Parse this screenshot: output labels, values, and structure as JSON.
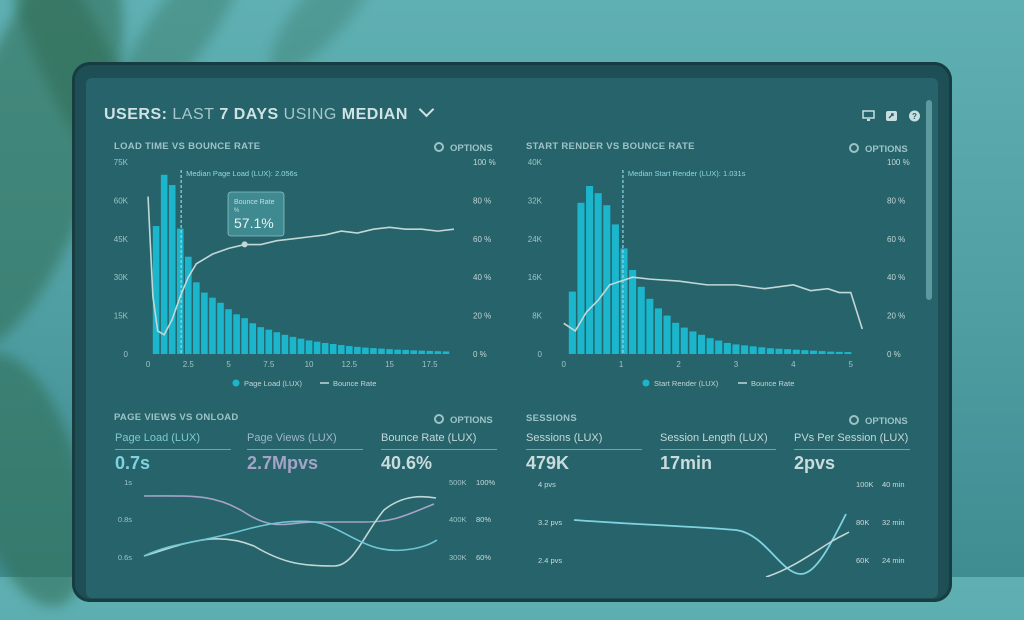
{
  "header": {
    "title_users": "USERS:",
    "title_last": "LAST",
    "title_days": "7 DAYS",
    "title_using": "USING",
    "title_median": "MEDIAN"
  },
  "top_icons": [
    "monitor-icon",
    "share-icon",
    "help-icon"
  ],
  "panels": {
    "load_time": {
      "title": "LOAD TIME VS BOUNCE RATE",
      "options": "OPTIONS",
      "median_label": "Median Page Load (LUX): 2.056s",
      "tooltip_label": "Bounce Rate",
      "tooltip_sub": "%",
      "tooltip_value": "57.1%",
      "legend": [
        "Page Load (LUX)",
        "Bounce Rate"
      ]
    },
    "start_render": {
      "title": "START RENDER VS BOUNCE RATE",
      "options": "OPTIONS",
      "median_label": "Median Start Render (LUX): 1.031s",
      "legend": [
        "Start Render (LUX)",
        "Bounce Rate"
      ]
    },
    "page_views": {
      "title": "PAGE VIEWS VS ONLOAD",
      "options": "OPTIONS",
      "metrics": [
        {
          "label": "Page Load (LUX)",
          "value": "0.7s",
          "color": "#7fd3e0"
        },
        {
          "label": "Page Views (LUX)",
          "value": "2.7Mpvs",
          "color": "#a5a3c8"
        },
        {
          "label": "Bounce Rate (LUX)",
          "value": "40.6%",
          "color": "#c9dcdd"
        }
      ]
    },
    "sessions": {
      "title": "SESSIONS",
      "options": "OPTIONS",
      "metrics": [
        {
          "label": "Sessions (LUX)",
          "value": "479K",
          "color": "#c9dcdd"
        },
        {
          "label": "Session Length (LUX)",
          "value": "17min",
          "color": "#c9dcdd"
        },
        {
          "label": "PVs Per Session (LUX)",
          "value": "2pvs",
          "color": "#c9dcdd"
        }
      ]
    }
  },
  "chart_data": [
    {
      "type": "bar",
      "title": "LOAD TIME VS BOUNCE RATE",
      "x": [
        0.5,
        1,
        1.5,
        2,
        2.5,
        3,
        3.5,
        4,
        4.5,
        5,
        5.5,
        6,
        6.5,
        7,
        7.5,
        8,
        8.5,
        9,
        9.5,
        10,
        10.5,
        11,
        11.5,
        12,
        12.5,
        13,
        13.5,
        14,
        14.5,
        15,
        15.5,
        16,
        16.5,
        17,
        17.5,
        18,
        18.5
      ],
      "series": [
        {
          "name": "Page Load (LUX)",
          "axis": "left",
          "values": [
            50000,
            70000,
            66000,
            49000,
            38000,
            28000,
            24000,
            22000,
            20000,
            17500,
            15500,
            14000,
            12000,
            10500,
            9500,
            8500,
            7500,
            6700,
            6000,
            5300,
            4800,
            4300,
            3900,
            3500,
            3100,
            2800,
            2500,
            2300,
            2100,
            1900,
            1700,
            1600,
            1400,
            1300,
            1200,
            1100,
            1000
          ]
        },
        {
          "name": "Bounce Rate",
          "axis": "right",
          "type": "line",
          "x": [
            0,
            0.3,
            0.6,
            1,
            1.5,
            2,
            2.5,
            3,
            4,
            5,
            6,
            7,
            8,
            9,
            10,
            11,
            12,
            13,
            14,
            15,
            16,
            17,
            18,
            19
          ],
          "values": [
            82,
            30,
            12,
            10,
            18,
            30,
            40,
            47,
            52,
            55,
            57,
            57,
            59,
            60,
            61,
            62,
            64,
            63,
            65,
            66,
            65,
            65,
            64,
            65
          ]
        }
      ],
      "xticks": [
        "0",
        "2.5",
        "5",
        "7.5",
        "10",
        "12.5",
        "15",
        "17.5"
      ],
      "yticks_left": [
        "0",
        "15K",
        "30K",
        "45K",
        "60K",
        "75K"
      ],
      "yticks_right": [
        "0 %",
        "20 %",
        "40 %",
        "60 %",
        "80 %",
        "100 %"
      ],
      "ylim_left": [
        0,
        75000
      ],
      "ylim_right": [
        0,
        100
      ],
      "xlim": [
        -0.5,
        19.5
      ],
      "median_x": 2.056
    },
    {
      "type": "bar",
      "title": "START RENDER VS BOUNCE RATE",
      "x": [
        0.15,
        0.3,
        0.45,
        0.6,
        0.75,
        0.9,
        1.05,
        1.2,
        1.35,
        1.5,
        1.65,
        1.8,
        1.95,
        2.1,
        2.25,
        2.4,
        2.55,
        2.7,
        2.85,
        3,
        3.15,
        3.3,
        3.45,
        3.6,
        3.75,
        3.9,
        4.05,
        4.2,
        4.35,
        4.5,
        4.65,
        4.8,
        4.95
      ],
      "series": [
        {
          "name": "Start Render (LUX)",
          "axis": "left",
          "values": [
            13000,
            31500,
            35000,
            33500,
            31000,
            27000,
            22000,
            17500,
            14000,
            11500,
            9500,
            8000,
            6500,
            5500,
            4700,
            4000,
            3300,
            2800,
            2300,
            2000,
            1800,
            1600,
            1400,
            1200,
            1100,
            1000,
            900,
            800,
            700,
            600,
            500,
            450,
            400
          ]
        },
        {
          "name": "Bounce Rate",
          "axis": "right",
          "type": "line",
          "x": [
            0,
            0.2,
            0.4,
            0.6,
            0.8,
            1,
            1.2,
            1.5,
            2,
            2.5,
            3,
            3.5,
            4,
            4.3,
            4.6,
            4.8,
            5,
            5.2
          ],
          "values": [
            16,
            12,
            22,
            28,
            36,
            38,
            40,
            39,
            38,
            36,
            36,
            34,
            36,
            33,
            34,
            32,
            32,
            13
          ]
        }
      ],
      "xticks": [
        "0",
        "1",
        "2",
        "3",
        "4",
        "5"
      ],
      "yticks_left": [
        "0",
        "8K",
        "16K",
        "24K",
        "32K",
        "40K"
      ],
      "yticks_right": [
        "0 %",
        "20 %",
        "40 %",
        "60 %",
        "80 %",
        "100 %"
      ],
      "ylim_left": [
        0,
        40000
      ],
      "ylim_right": [
        0,
        100
      ],
      "xlim": [
        -0.1,
        5.3
      ],
      "median_x": 1.031
    },
    {
      "type": "line",
      "title": "PAGE VIEWS VS ONLOAD",
      "yticks_left": [
        "1s",
        "0.8s",
        "0.6s"
      ],
      "yticks_right_a": [
        "500K",
        "400K",
        "300K"
      ],
      "yticks_right_b": [
        "100%",
        "80%",
        "60%"
      ]
    },
    {
      "type": "line",
      "title": "SESSIONS",
      "yticks_left": [
        "4 pvs",
        "3.2 pvs",
        "2.4 pvs"
      ],
      "yticks_right_a": [
        "100K",
        "80K",
        "60K"
      ],
      "yticks_right_b": [
        "40 min",
        "32 min",
        "24 min"
      ]
    }
  ],
  "colors": {
    "bar": "#1bb6cc",
    "line": "#c2d7d8",
    "accent": "#7fd3e0"
  }
}
